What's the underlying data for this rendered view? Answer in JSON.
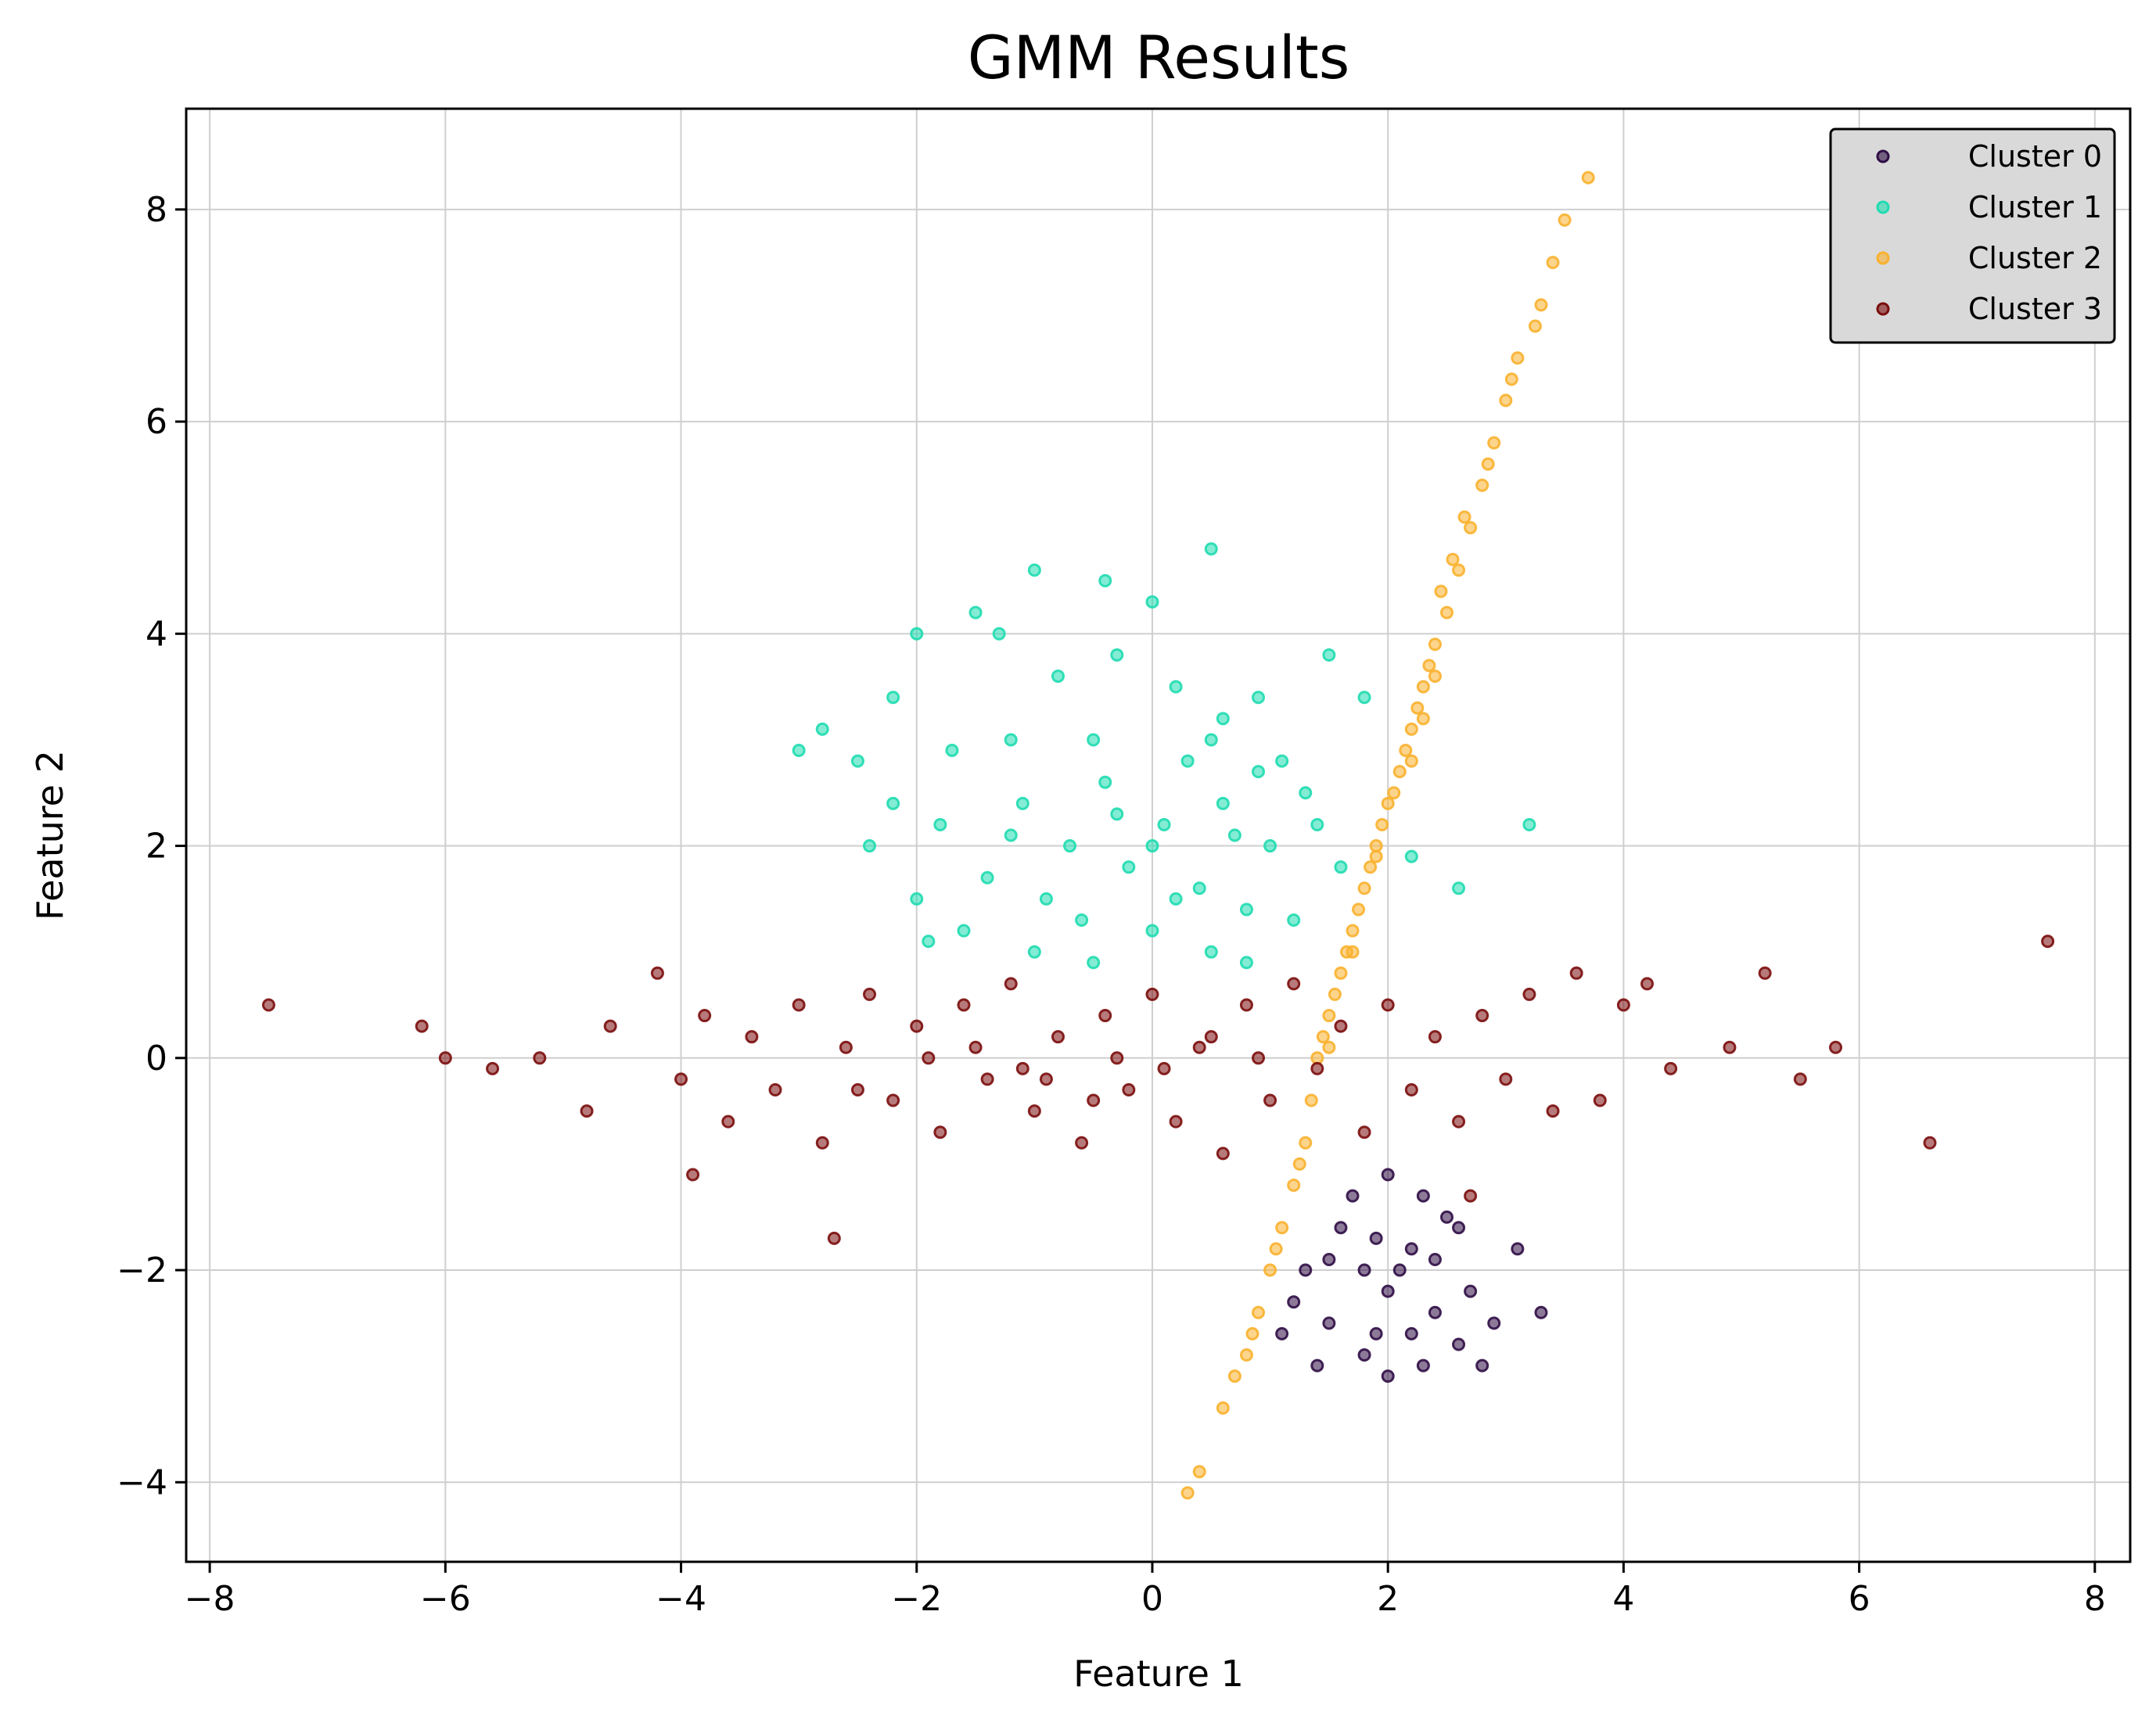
{
  "chart_data": {
    "type": "scatter",
    "title": "GMM Results",
    "xlabel": "Feature 1",
    "ylabel": "Feature 2",
    "xlim": [
      -8.2,
      8.3
    ],
    "ylim": [
      -4.75,
      8.95
    ],
    "xticks": [
      -8,
      -6,
      -4,
      -2,
      0,
      2,
      4,
      6,
      8
    ],
    "yticks": [
      -4,
      -2,
      0,
      2,
      4,
      6,
      8
    ],
    "xtick_labels": [
      "−8",
      "−6",
      "−4",
      "−2",
      "0",
      "2",
      "4",
      "6",
      "8"
    ],
    "ytick_labels": [
      "−4",
      "−2",
      "0",
      "2",
      "4",
      "6",
      "8"
    ],
    "grid": true,
    "legend_position": "top-right",
    "series": [
      {
        "name": "Cluster 0",
        "color": "#2f0d45",
        "points": [
          [
            1.6,
            -1.6
          ],
          [
            1.8,
            -2.0
          ],
          [
            2.0,
            -2.2
          ],
          [
            2.2,
            -1.8
          ],
          [
            2.4,
            -2.4
          ],
          [
            1.5,
            -2.5
          ],
          [
            2.6,
            -2.7
          ],
          [
            2.8,
            -2.9
          ],
          [
            2.0,
            -1.1
          ],
          [
            2.3,
            -1.3
          ],
          [
            1.2,
            -2.3
          ],
          [
            1.4,
            -2.9
          ],
          [
            3.1,
            -1.8
          ],
          [
            3.3,
            -2.4
          ],
          [
            1.9,
            -2.6
          ],
          [
            2.1,
            -2.0
          ],
          [
            2.5,
            -1.5
          ],
          [
            1.7,
            -1.3
          ],
          [
            2.7,
            -2.2
          ],
          [
            1.3,
            -2.0
          ],
          [
            2.2,
            -2.6
          ],
          [
            1.8,
            -2.8
          ],
          [
            2.4,
            -1.9
          ],
          [
            2.9,
            -2.5
          ],
          [
            1.1,
            -2.6
          ],
          [
            2.0,
            -3.0
          ],
          [
            2.6,
            -1.6
          ],
          [
            1.5,
            -1.9
          ],
          [
            2.3,
            -2.9
          ],
          [
            1.9,
            -1.7
          ]
        ]
      },
      {
        "name": "Cluster 1",
        "color": "#1fdcb0",
        "points": [
          [
            -1.0,
            4.6
          ],
          [
            -0.4,
            4.5
          ],
          [
            0.5,
            4.8
          ],
          [
            0.0,
            4.3
          ],
          [
            -2.0,
            4.0
          ],
          [
            -1.5,
            4.2
          ],
          [
            -1.3,
            4.0
          ],
          [
            -2.2,
            3.4
          ],
          [
            -3.0,
            2.9
          ],
          [
            -2.8,
            3.1
          ],
          [
            -2.5,
            2.8
          ],
          [
            -2.2,
            2.4
          ],
          [
            -1.8,
            2.2
          ],
          [
            -1.2,
            3.0
          ],
          [
            -0.8,
            3.6
          ],
          [
            -0.3,
            3.8
          ],
          [
            0.2,
            3.5
          ],
          [
            0.6,
            3.2
          ],
          [
            0.9,
            3.4
          ],
          [
            1.1,
            2.8
          ],
          [
            1.5,
            3.8
          ],
          [
            1.8,
            3.4
          ],
          [
            -2.0,
            1.5
          ],
          [
            -1.6,
            1.2
          ],
          [
            -1.0,
            1.0
          ],
          [
            -0.5,
            0.9
          ],
          [
            0.0,
            1.2
          ],
          [
            0.5,
            1.0
          ],
          [
            0.8,
            0.9
          ],
          [
            1.2,
            1.3
          ],
          [
            1.6,
            1.8
          ],
          [
            2.2,
            1.9
          ],
          [
            2.6,
            1.6
          ],
          [
            3.2,
            2.2
          ],
          [
            -2.4,
            2.0
          ],
          [
            -1.4,
            1.7
          ],
          [
            -0.7,
            2.0
          ],
          [
            0.1,
            2.2
          ],
          [
            0.6,
            2.4
          ],
          [
            1.0,
            2.0
          ],
          [
            -0.4,
            2.6
          ],
          [
            0.3,
            2.8
          ],
          [
            -0.9,
            1.5
          ],
          [
            0.4,
            1.6
          ],
          [
            -1.1,
            2.4
          ],
          [
            1.3,
            2.5
          ],
          [
            0.8,
            1.4
          ],
          [
            -0.2,
            1.8
          ],
          [
            -0.6,
            1.3
          ],
          [
            0.9,
            2.7
          ],
          [
            -1.7,
            2.9
          ],
          [
            0.0,
            2.0
          ],
          [
            -0.3,
            2.3
          ],
          [
            0.2,
            1.5
          ],
          [
            0.7,
            2.1
          ],
          [
            -0.5,
            3.0
          ],
          [
            1.4,
            2.2
          ],
          [
            -1.9,
            1.1
          ],
          [
            -1.2,
            2.1
          ],
          [
            0.5,
            3.0
          ]
        ]
      },
      {
        "name": "Cluster 2",
        "color": "#f9b12e",
        "points": [
          [
            3.7,
            8.3
          ],
          [
            3.5,
            7.9
          ],
          [
            3.4,
            7.5
          ],
          [
            3.3,
            7.1
          ],
          [
            3.1,
            6.6
          ],
          [
            3.0,
            6.2
          ],
          [
            2.9,
            5.8
          ],
          [
            2.8,
            5.4
          ],
          [
            2.7,
            5.0
          ],
          [
            2.6,
            4.6
          ],
          [
            2.5,
            4.2
          ],
          [
            2.4,
            3.9
          ],
          [
            2.3,
            3.5
          ],
          [
            2.2,
            3.1
          ],
          [
            2.1,
            2.7
          ],
          [
            2.0,
            2.4
          ],
          [
            1.9,
            2.0
          ],
          [
            1.8,
            1.6
          ],
          [
            1.7,
            1.2
          ],
          [
            1.6,
            0.8
          ],
          [
            1.5,
            0.4
          ],
          [
            1.4,
            0.0
          ],
          [
            1.35,
            -0.4
          ],
          [
            1.3,
            -0.8
          ],
          [
            1.2,
            -1.2
          ],
          [
            1.1,
            -1.6
          ],
          [
            1.0,
            -2.0
          ],
          [
            0.9,
            -2.4
          ],
          [
            0.8,
            -2.8
          ],
          [
            0.7,
            -3.0
          ],
          [
            0.6,
            -3.3
          ],
          [
            0.4,
            -3.9
          ],
          [
            0.3,
            -4.1
          ],
          [
            2.45,
            4.4
          ],
          [
            2.35,
            3.7
          ],
          [
            2.25,
            3.3
          ],
          [
            2.15,
            2.9
          ],
          [
            2.05,
            2.5
          ],
          [
            1.95,
            2.2
          ],
          [
            1.85,
            1.8
          ],
          [
            1.75,
            1.4
          ],
          [
            1.65,
            1.0
          ],
          [
            1.55,
            0.6
          ],
          [
            1.45,
            0.2
          ],
          [
            2.55,
            4.7
          ],
          [
            2.65,
            5.1
          ],
          [
            2.85,
            5.6
          ],
          [
            3.05,
            6.4
          ],
          [
            3.25,
            6.9
          ],
          [
            2.2,
            2.8
          ],
          [
            2.3,
            3.2
          ],
          [
            2.4,
            3.6
          ],
          [
            1.9,
            1.9
          ],
          [
            1.7,
            1.0
          ],
          [
            1.5,
            0.1
          ],
          [
            1.25,
            -1.0
          ],
          [
            1.05,
            -1.8
          ],
          [
            0.85,
            -2.6
          ]
        ]
      },
      {
        "name": "Cluster 3",
        "color": "#7b0d0d",
        "points": [
          [
            -7.5,
            0.5
          ],
          [
            -6.2,
            0.3
          ],
          [
            -6.0,
            0.0
          ],
          [
            -5.6,
            -0.1
          ],
          [
            -5.2,
            0.0
          ],
          [
            -4.8,
            -0.5
          ],
          [
            -4.6,
            0.3
          ],
          [
            -4.2,
            0.8
          ],
          [
            -4.0,
            -0.2
          ],
          [
            -3.8,
            0.4
          ],
          [
            -3.6,
            -0.6
          ],
          [
            -3.4,
            0.2
          ],
          [
            -3.2,
            -0.3
          ],
          [
            -3.0,
            0.5
          ],
          [
            -2.8,
            -0.8
          ],
          [
            -2.6,
            0.1
          ],
          [
            -2.4,
            0.6
          ],
          [
            -2.2,
            -0.4
          ],
          [
            -2.0,
            0.3
          ],
          [
            -1.8,
            -0.7
          ],
          [
            -1.6,
            0.5
          ],
          [
            -1.4,
            -0.2
          ],
          [
            -1.2,
            0.7
          ],
          [
            -1.0,
            -0.5
          ],
          [
            -0.8,
            0.2
          ],
          [
            -0.6,
            -0.8
          ],
          [
            -0.4,
            0.4
          ],
          [
            -0.2,
            -0.3
          ],
          [
            0.0,
            0.6
          ],
          [
            0.2,
            -0.6
          ],
          [
            0.4,
            0.1
          ],
          [
            0.6,
            -0.9
          ],
          [
            0.8,
            0.5
          ],
          [
            1.0,
            -0.4
          ],
          [
            1.2,
            0.7
          ],
          [
            1.4,
            -0.1
          ],
          [
            1.6,
            0.3
          ],
          [
            1.8,
            -0.7
          ],
          [
            2.0,
            0.5
          ],
          [
            2.2,
            -0.3
          ],
          [
            2.4,
            0.2
          ],
          [
            2.6,
            -0.6
          ],
          [
            2.8,
            0.4
          ],
          [
            3.0,
            -0.2
          ],
          [
            3.2,
            0.6
          ],
          [
            3.4,
            -0.5
          ],
          [
            3.6,
            0.8
          ],
          [
            3.8,
            -0.4
          ],
          [
            4.0,
            0.5
          ],
          [
            4.2,
            0.7
          ],
          [
            4.4,
            -0.1
          ],
          [
            4.9,
            0.1
          ],
          [
            5.2,
            0.8
          ],
          [
            5.5,
            -0.2
          ],
          [
            5.8,
            0.1
          ],
          [
            6.6,
            -0.8
          ],
          [
            7.6,
            1.1
          ],
          [
            -2.7,
            -1.7
          ],
          [
            -3.9,
            -1.1
          ],
          [
            2.7,
            -1.3
          ],
          [
            -1.1,
            -0.1
          ],
          [
            -0.3,
            0.0
          ],
          [
            0.5,
            0.2
          ],
          [
            -1.5,
            0.1
          ],
          [
            -0.9,
            -0.2
          ],
          [
            0.1,
            -0.1
          ],
          [
            0.9,
            0.0
          ],
          [
            -2.5,
            -0.3
          ],
          [
            -1.9,
            0.0
          ],
          [
            -0.5,
            -0.4
          ]
        ]
      }
    ]
  }
}
